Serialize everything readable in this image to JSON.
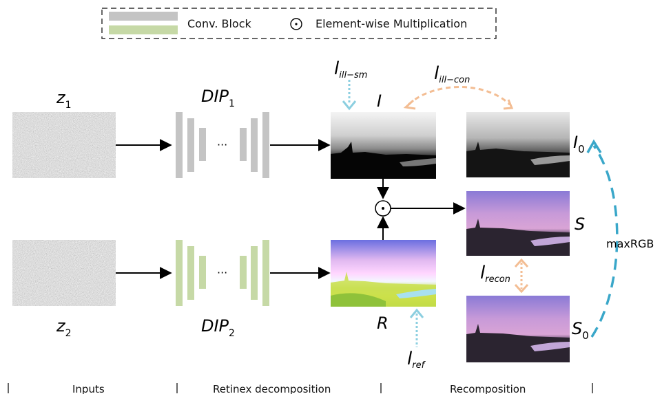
{
  "legend": {
    "conv_block": "Conv. Block",
    "odot_symbol": "⊙",
    "element_wise": "Element-wise Multiplication",
    "conv_colors": [
      "#c4c4c4",
      "#c6d9a6"
    ]
  },
  "inputs": {
    "z1": {
      "main": "z",
      "sub": "1"
    },
    "z2": {
      "main": "z",
      "sub": "2"
    }
  },
  "networks": {
    "dip1": {
      "main": "DIP",
      "sub": "1",
      "color": "#c4c4c4"
    },
    "dip2": {
      "main": "DIP",
      "sub": "2",
      "color": "#c6d9a6"
    },
    "ellipsis": "···"
  },
  "decomposition": {
    "I": "I",
    "R": "R",
    "odot": "⊙"
  },
  "recomposition": {
    "I0": {
      "main": "I",
      "sub": "0"
    },
    "S": "S",
    "S0": {
      "main": "S",
      "sub": "0"
    },
    "maxrgb": "maxRGB"
  },
  "losses": {
    "ill_sm": {
      "main": "l",
      "sub": "ill−sm"
    },
    "ill_con": {
      "main": "l",
      "sub": "ill−con"
    },
    "recon": {
      "main": "l",
      "sub": "recon"
    },
    "ref": {
      "main": "l",
      "sub": "ref"
    }
  },
  "colors": {
    "blue_dotted": "#8ccfe0",
    "orange_dotted": "#f3bd93",
    "maxrgb_dash": "#3aa7c9"
  },
  "sections": {
    "inputs": "Inputs",
    "retinex": "Retinex decomposition",
    "recomposition": "Recomposition"
  }
}
